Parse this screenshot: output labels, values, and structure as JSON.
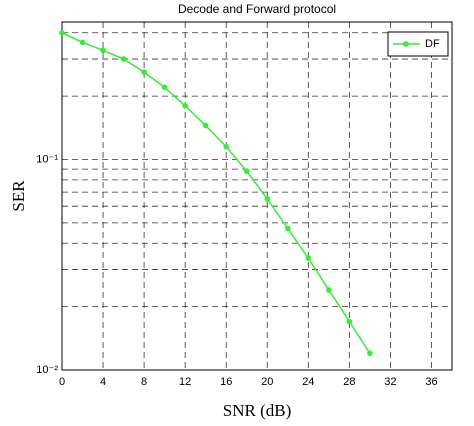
{
  "chart_data": {
    "type": "line",
    "title": "Decode and Forward protocol",
    "x_label": "SNR (dB)",
    "y_label": "SER",
    "x": [
      0,
      2,
      4,
      6,
      8,
      10,
      12,
      14,
      16,
      18,
      20,
      22,
      24,
      26,
      28,
      30
    ],
    "series": [
      {
        "name": "DF",
        "color": "#33ee33",
        "values": [
          0.4,
          0.36,
          0.33,
          0.3,
          0.26,
          0.22,
          0.18,
          0.145,
          0.115,
          0.088,
          0.065,
          0.047,
          0.034,
          0.024,
          0.017,
          0.012
        ]
      }
    ],
    "xlim": [
      0,
      38
    ],
    "xticks": [
      0,
      4,
      8,
      12,
      16,
      20,
      24,
      28,
      32,
      36
    ],
    "ylim": [
      0.01,
      0.45
    ],
    "y_scale": "log",
    "yticks": [
      {
        "value": 0.01,
        "label": "10⁻²"
      },
      {
        "value": 0.1,
        "label": "10⁻¹"
      }
    ],
    "minor_yticks": [
      0.02,
      0.03,
      0.04,
      0.05,
      0.06,
      0.07,
      0.08,
      0.09,
      0.2,
      0.3,
      0.4
    ],
    "grid": true,
    "legend": "upper right"
  }
}
